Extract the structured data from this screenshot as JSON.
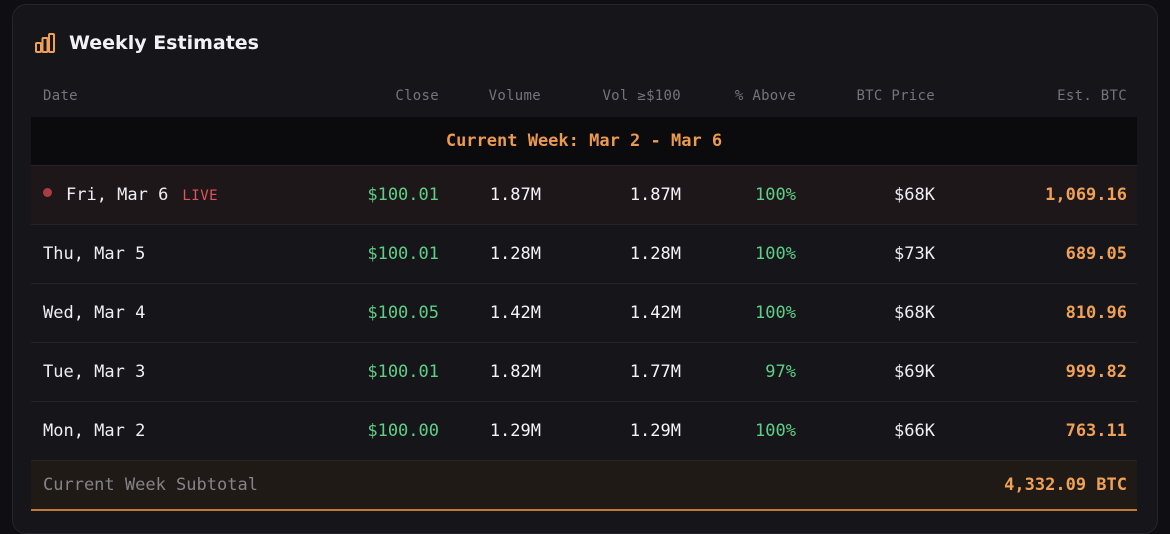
{
  "card": {
    "title": "Weekly Estimates",
    "icon": "bar-chart-icon",
    "accent": "#f0a155"
  },
  "table": {
    "columns": [
      "Date",
      "Close",
      "Volume",
      "Vol ≥$100",
      "% Above",
      "BTC Price",
      "Est. BTC"
    ],
    "week_label": "Current Week: Mar 2 - Mar 6",
    "live_label": "LIVE",
    "rows": [
      {
        "date": "Fri, Mar 6",
        "close": "$100.01",
        "volume": "1.87M",
        "vol_above": "1.87M",
        "pct_above": "100%",
        "btc_price": "$68K",
        "est_btc": "1,069.16",
        "live": true
      },
      {
        "date": "Thu, Mar 5",
        "close": "$100.01",
        "volume": "1.28M",
        "vol_above": "1.28M",
        "pct_above": "100%",
        "btc_price": "$73K",
        "est_btc": "689.05"
      },
      {
        "date": "Wed, Mar 4",
        "close": "$100.05",
        "volume": "1.42M",
        "vol_above": "1.42M",
        "pct_above": "100%",
        "btc_price": "$68K",
        "est_btc": "810.96"
      },
      {
        "date": "Tue, Mar 3",
        "close": "$100.01",
        "volume": "1.82M",
        "vol_above": "1.77M",
        "pct_above": "97%",
        "btc_price": "$69K",
        "est_btc": "999.82"
      },
      {
        "date": "Mon, Mar 2",
        "close": "$100.00",
        "volume": "1.29M",
        "vol_above": "1.29M",
        "pct_above": "100%",
        "btc_price": "$66K",
        "est_btc": "763.11"
      }
    ],
    "subtotal": {
      "label": "Current Week Subtotal",
      "value": "4,332.09 BTC"
    }
  },
  "colors": {
    "positive": "#5ecf86",
    "live": "#e0555d",
    "week_header": "#eb9a4e"
  }
}
